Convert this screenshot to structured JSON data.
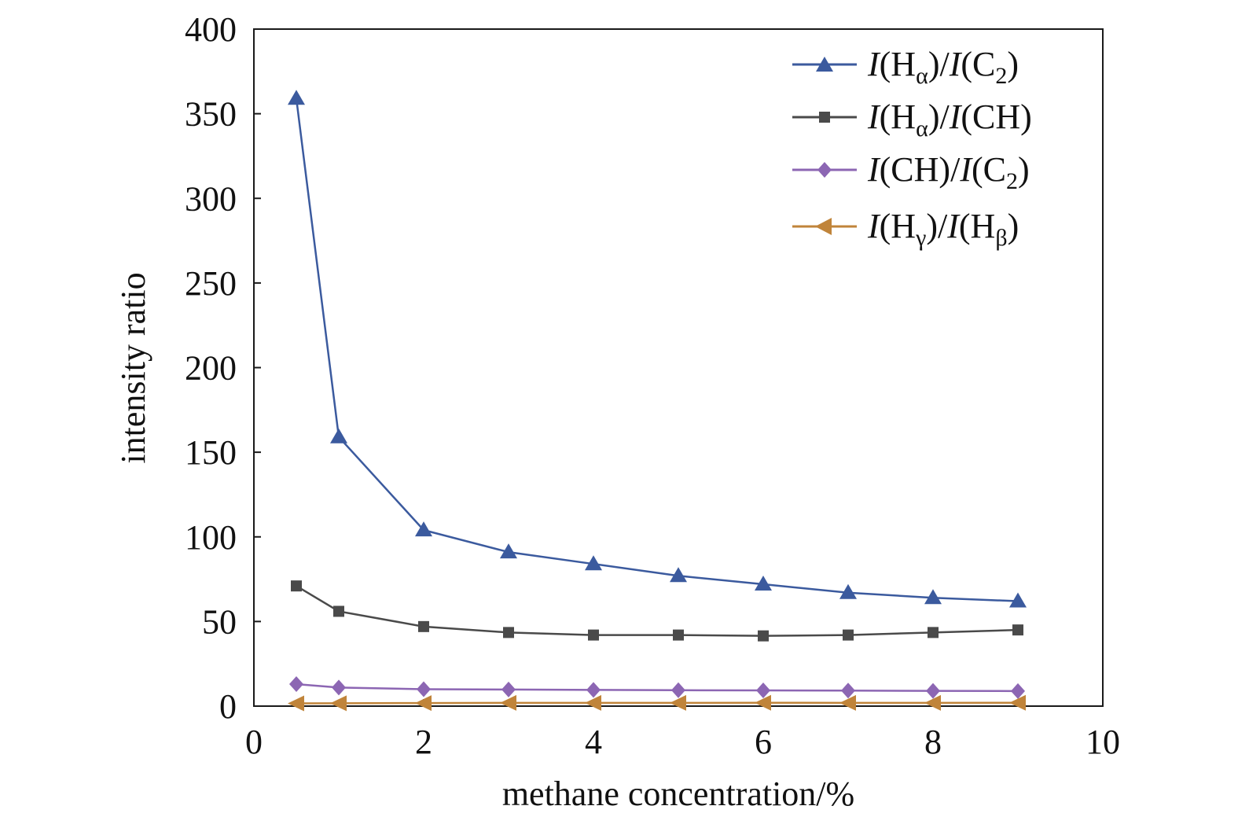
{
  "chart_data": {
    "type": "line",
    "title": "",
    "xlabel": "methane concentration/%",
    "ylabel": "intensity ratio",
    "xlim": [
      0,
      10
    ],
    "ylim": [
      0,
      400
    ],
    "x_ticks": [
      "0",
      "2",
      "4",
      "6",
      "8",
      "10"
    ],
    "y_ticks": [
      "0",
      "50",
      "100",
      "150",
      "200",
      "250",
      "300",
      "350",
      "400"
    ],
    "grid": false,
    "legend_position": "top-right",
    "x": [
      0.5,
      1,
      2,
      3,
      4,
      5,
      6,
      7,
      8,
      9
    ],
    "series": [
      {
        "name": "I(Hα)/I(C2)",
        "legend_parts": {
          "a": "I",
          "b": "(H",
          "c": "α",
          "d": ")/",
          "e": "I",
          "f": "(C",
          "g": "2",
          "h": ")"
        },
        "marker": "triangle-up",
        "color": "#3b5a9e",
        "values": [
          359,
          159,
          104,
          91,
          84,
          77,
          72,
          67,
          64,
          62
        ]
      },
      {
        "name": "I(Hα)/I(CH)",
        "legend_parts": {
          "a": "I",
          "b": "(H",
          "c": "α",
          "d": ")/",
          "e": "I",
          "f": "(CH)",
          "g": "",
          "h": ""
        },
        "marker": "square",
        "color": "#4a4a4a",
        "values": [
          71,
          56,
          47,
          43.5,
          42,
          42,
          41.5,
          42,
          43.5,
          45
        ]
      },
      {
        "name": "I(CH)/I(C2)",
        "legend_parts": {
          "a": "I",
          "b": "(CH)/",
          "c": "",
          "d": "",
          "e": "I",
          "f": "(C",
          "g": "2",
          "h": ")"
        },
        "marker": "diamond",
        "color": "#8c66b3",
        "values": [
          13,
          11,
          10,
          9.8,
          9.6,
          9.4,
          9.3,
          9.2,
          9.0,
          8.9
        ]
      },
      {
        "name": "I(Hγ)/I(Hβ)",
        "legend_parts": {
          "a": "I",
          "b": "(H",
          "c": "γ",
          "d": ")/",
          "e": "I",
          "f": "(H",
          "g": "β",
          "h": ")"
        },
        "marker": "triangle-left",
        "color": "#c0843a",
        "values": [
          1.6,
          1.7,
          1.8,
          1.9,
          1.9,
          1.9,
          2.0,
          1.9,
          1.9,
          2.0
        ]
      }
    ]
  }
}
